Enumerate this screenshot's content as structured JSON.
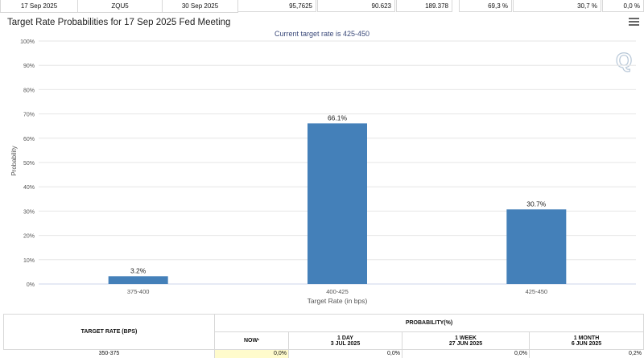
{
  "top_row": {
    "meeting_date": "17 Sep 2025",
    "contract": "ZQU5",
    "expires": "30 Sep 2025",
    "mid_price": "95,7625",
    "prior_volume": "90.623",
    "prior_oi": "189.378",
    "ease_prob": "69,3 %",
    "no_change_prob": "30,7 %",
    "hike_prob": "0,0 %"
  },
  "chart": {
    "title": "Target Rate Probabilities for 17 Sep 2025 Fed Meeting",
    "subtitle": "Current target rate is 425-450"
  },
  "chart_data": {
    "type": "bar",
    "categories": [
      "375-400",
      "400-425",
      "425-450"
    ],
    "values": [
      3.2,
      66.1,
      30.7
    ],
    "data_labels": [
      "3.2%",
      "66.1%",
      "30.7%"
    ],
    "xlabel": "Target Rate (in bps)",
    "ylabel": "Probability",
    "ylim": [
      0,
      100
    ],
    "yticks": [
      "0%",
      "10%",
      "20%",
      "30%",
      "40%",
      "50%",
      "60%",
      "70%",
      "80%",
      "90%",
      "100%"
    ],
    "bar_color": "#4480b9"
  },
  "table": {
    "col_target": "TARGET RATE (BPS)",
    "col_probability": "PROBABILITY(%)",
    "col_now": "NOW",
    "now_marker": "*",
    "col_1day": "1 DAY",
    "col_1day_date": "3 JUL 2025",
    "col_1week": "1 WEEK",
    "col_1week_date": "27 JUN 2025",
    "col_1month": "1 MONTH",
    "col_1month_date": "6 JUN 2025",
    "row1": {
      "rate": "350-375",
      "now": "0,0%",
      "day": "0,0%",
      "week": "0,0%",
      "month": "0,2%"
    }
  },
  "colors": {
    "highlight": "#fffbcc"
  }
}
